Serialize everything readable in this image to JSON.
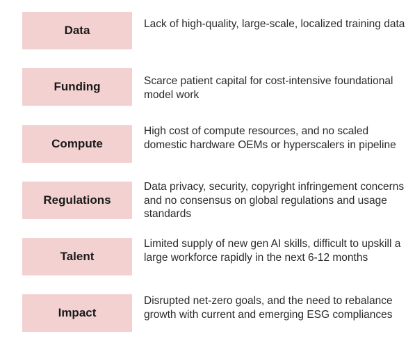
{
  "colors": {
    "box_fill": "#f3d1d1",
    "label_text": "#1a1a1a",
    "desc_text": "#2a2a2a"
  },
  "rows": [
    {
      "label": "Data",
      "description": "Lack of high-quality, large-scale, localized training data"
    },
    {
      "label": "Funding",
      "description": "Scarce patient capital for cost-intensive foundational model work"
    },
    {
      "label": "Compute",
      "description": "High cost of compute resources, and no scaled domestic hardware OEMs or hyperscalers in pipeline"
    },
    {
      "label": "Regulations",
      "description": "Data privacy, security, copyright infringement concerns and no consensus on global regulations and usage standards"
    },
    {
      "label": "Talent",
      "description": "Limited supply of new gen AI skills, difficult to upskill a large workforce rapidly in the next 6-12 months"
    },
    {
      "label": "Impact",
      "description": "Disrupted net-zero goals, and the need to rebalance growth with current and emerging ESG compliances"
    }
  ]
}
